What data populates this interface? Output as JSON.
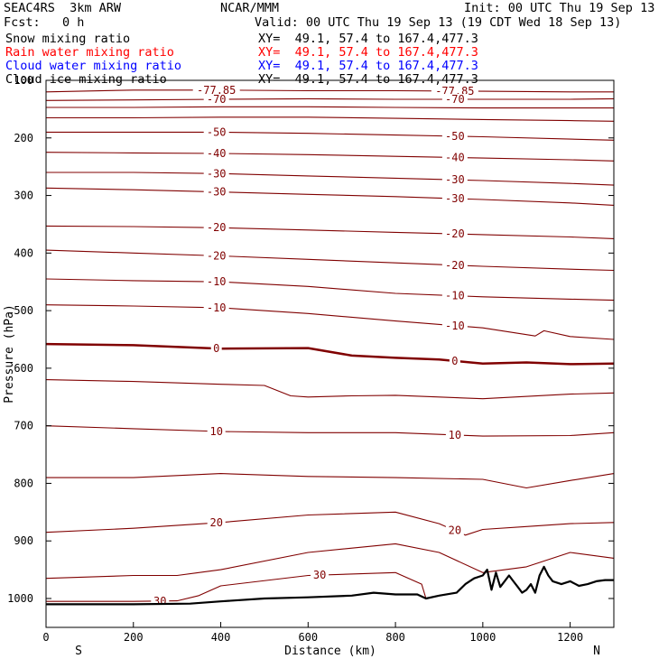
{
  "header": {
    "model": "SEAC4RS  3km ARW",
    "fcst": "Fcst:   0 h",
    "org": "NCAR/MMM",
    "init": "Init: 00 UTC Thu 19 Sep 13",
    "valid": "Valid: 00 UTC Thu 19 Sep 13 (19 CDT Wed 18 Sep 13)"
  },
  "fields": [
    {
      "name": "Snow mixing ratio",
      "xy": "XY=  49.1, 57.4 to 167.4,477.3",
      "color": "#000000"
    },
    {
      "name": "Rain water mixing ratio",
      "xy": "XY=  49.1, 57.4 to 167.4,477.3",
      "color": "#ff0000"
    },
    {
      "name": "Cloud water mixing ratio",
      "xy": "XY=  49.1, 57.4 to 167.4,477.3",
      "color": "#0000ff"
    },
    {
      "name": "Cloud ice mixing ratio",
      "xy": "XY=  49.1, 57.4 to 167.4,477.3",
      "color": "#000000"
    }
  ],
  "chart_data": {
    "type": "line",
    "title": "",
    "xlabel": "Distance (km)",
    "ylabel": "Pressure (hPa)",
    "xlim": [
      0,
      1300
    ],
    "ylim": [
      1050,
      100
    ],
    "xticks": [
      "0",
      "200",
      "400",
      "600",
      "800",
      "1000",
      "1200"
    ],
    "yticks": [
      "100",
      "200",
      "300",
      "400",
      "500",
      "600",
      "700",
      "800",
      "900",
      "1000"
    ],
    "end_labels": {
      "left": "S",
      "right": "N"
    },
    "isotherm_color": "#800000",
    "terrain_color": "#000000",
    "isotherms": [
      {
        "label": "-77.85",
        "x": [
          0,
          200,
          400,
          600,
          800,
          1000,
          1200,
          1300
        ],
        "p": [
          120,
          117,
          117,
          118,
          118,
          119,
          120,
          120
        ]
      },
      {
        "label": "-70",
        "x": [
          0,
          200,
          400,
          600,
          800,
          1000,
          1200,
          1300
        ],
        "p": [
          135,
          134,
          133,
          132,
          133,
          133,
          133,
          132
        ]
      },
      {
        "label": "",
        "x": [
          0,
          200,
          400,
          600,
          800,
          1000,
          1200,
          1300
        ],
        "p": [
          147,
          147,
          146,
          146,
          147,
          148,
          148,
          148
        ]
      },
      {
        "label": "",
        "x": [
          0,
          200,
          400,
          600,
          800,
          1000,
          1200,
          1300
        ],
        "p": [
          165,
          165,
          164,
          164,
          166,
          168,
          170,
          171
        ]
      },
      {
        "label": "-50",
        "x": [
          0,
          200,
          400,
          600,
          800,
          1000,
          1200,
          1300
        ],
        "p": [
          190,
          190,
          190,
          192,
          195,
          198,
          202,
          204
        ]
      },
      {
        "label": "-40",
        "x": [
          0,
          200,
          400,
          600,
          800,
          1000,
          1200,
          1300
        ],
        "p": [
          225,
          226,
          227,
          229,
          232,
          235,
          238,
          240
        ]
      },
      {
        "label": "-30",
        "x": [
          0,
          200,
          400,
          600,
          800,
          1000,
          1200,
          1300
        ],
        "p": [
          260,
          260,
          262,
          266,
          270,
          274,
          279,
          282
        ]
      },
      {
        "label": "-30",
        "x": [
          0,
          200,
          400,
          600,
          800,
          1000,
          1200,
          1300
        ],
        "p": [
          287,
          290,
          294,
          298,
          302,
          307,
          313,
          317
        ]
      },
      {
        "label": "-20",
        "x": [
          0,
          200,
          400,
          600,
          800,
          1000,
          1200,
          1300
        ],
        "p": [
          353,
          354,
          356,
          360,
          364,
          368,
          372,
          375
        ]
      },
      {
        "label": "-20",
        "x": [
          0,
          200,
          400,
          600,
          800,
          1000,
          1200,
          1300
        ],
        "p": [
          395,
          400,
          405,
          411,
          417,
          423,
          428,
          430
        ]
      },
      {
        "label": "-10",
        "x": [
          0,
          200,
          400,
          600,
          800,
          1000,
          1200,
          1300
        ],
        "p": [
          445,
          448,
          450,
          458,
          470,
          476,
          480,
          482
        ]
      },
      {
        "label": "-10",
        "x": [
          0,
          200,
          400,
          600,
          800,
          1000,
          1120,
          1140,
          1200,
          1300
        ],
        "p": [
          490,
          492,
          495,
          505,
          518,
          530,
          544,
          535,
          545,
          550
        ]
      },
      {
        "label": "0",
        "x": [
          0,
          200,
          400,
          600,
          700,
          800,
          900,
          1000,
          1100,
          1200,
          1300
        ],
        "p": [
          558,
          560,
          566,
          565,
          578,
          582,
          585,
          592,
          590,
          593,
          592
        ]
      },
      {
        "label": "",
        "x": [
          0,
          200,
          400,
          500,
          560,
          600,
          700,
          800,
          1000,
          1200,
          1300
        ],
        "p": [
          620,
          623,
          628,
          630,
          648,
          650,
          648,
          647,
          653,
          645,
          643
        ]
      },
      {
        "label": "10",
        "x": [
          0,
          200,
          400,
          600,
          800,
          1000,
          1200,
          1300
        ],
        "p": [
          700,
          705,
          710,
          712,
          712,
          718,
          717,
          712
        ]
      },
      {
        "label": "",
        "x": [
          0,
          200,
          400,
          600,
          800,
          1000,
          1100,
          1200,
          1300
        ],
        "p": [
          790,
          790,
          783,
          788,
          790,
          793,
          808,
          795,
          783
        ]
      },
      {
        "label": "20",
        "x": [
          0,
          200,
          400,
          600,
          800,
          900,
          960,
          1000,
          1100,
          1200,
          1300
        ],
        "p": [
          885,
          878,
          868,
          855,
          850,
          870,
          890,
          880,
          875,
          870,
          868
        ]
      },
      {
        "label": "",
        "x": [
          0,
          200,
          300,
          400,
          600,
          800,
          900,
          1000,
          1100,
          1200,
          1300
        ],
        "p": [
          965,
          960,
          960,
          950,
          920,
          905,
          920,
          955,
          945,
          920,
          930
        ]
      },
      {
        "label": "30",
        "x": [
          0,
          200,
          300,
          350,
          400,
          600,
          800,
          860,
          870
        ],
        "p": [
          1005,
          1005,
          1004,
          995,
          978,
          960,
          955,
          975,
          1000
        ]
      }
    ],
    "terrain": {
      "x": [
        0,
        200,
        330,
        400,
        500,
        600,
        700,
        750,
        800,
        850,
        870,
        900,
        940,
        960,
        980,
        1000,
        1010,
        1020,
        1030,
        1040,
        1050,
        1060,
        1070,
        1080,
        1090,
        1100,
        1110,
        1120,
        1130,
        1140,
        1150,
        1160,
        1180,
        1200,
        1220,
        1240,
        1260,
        1280,
        1300
      ],
      "p": [
        1010,
        1010,
        1009,
        1005,
        1000,
        998,
        995,
        990,
        993,
        993,
        1000,
        995,
        990,
        975,
        965,
        960,
        950,
        985,
        955,
        980,
        970,
        960,
        970,
        980,
        990,
        985,
        975,
        990,
        960,
        945,
        960,
        970,
        975,
        970,
        978,
        975,
        970,
        968,
        968
      ]
    }
  }
}
